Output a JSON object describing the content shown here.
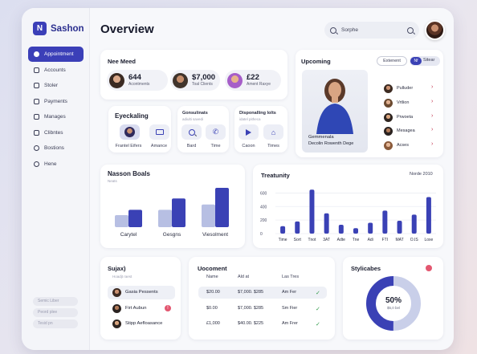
{
  "app": {
    "name": "Sashon"
  },
  "page": {
    "title": "Overview"
  },
  "search": {
    "placeholder": "Sorphe"
  },
  "sidebar": {
    "items": [
      {
        "label": "Appointment",
        "active": true
      },
      {
        "label": "Accounts"
      },
      {
        "label": "Stoler"
      },
      {
        "label": "Payments"
      },
      {
        "label": "Manages"
      },
      {
        "label": "Clibntes"
      },
      {
        "label": "Bostions"
      },
      {
        "label": "Hene"
      }
    ],
    "footer": [
      "Semic Liber",
      "Peord plee",
      "Tesid pn"
    ]
  },
  "need": {
    "title": "Nee Meed",
    "metrics": [
      {
        "value": "644",
        "label": "Acontments"
      },
      {
        "value": "$7,000",
        "label": "Toal Clients"
      },
      {
        "value": "£22",
        "label": "Ament Raxye"
      }
    ]
  },
  "eyeck": {
    "title": "Eyeckaling",
    "tiles": [
      {
        "label": "Frantel Eifers",
        "icon": "person-photo-icon"
      },
      {
        "label": "Amance",
        "icon": "monitor-icon"
      }
    ]
  },
  "gonsul": {
    "title": "Gonsulinats",
    "subtitle": "adiulti savedi",
    "tiles": [
      {
        "label": "Bard",
        "icon": "search-icon"
      },
      {
        "label": "Time",
        "icon": "phone-icon"
      }
    ]
  },
  "disponal": {
    "title": "Disponalling lolts",
    "subtitle": "idatel pitheca",
    "tiles": [
      {
        "label": "Caoon",
        "icon": "play-icon"
      },
      {
        "label": "Times",
        "icon": "home-icon"
      }
    ]
  },
  "upcoming": {
    "title": "Upcoming",
    "buttons": {
      "a": "Extenent",
      "b": "Sitear",
      "toggle": "Nf"
    },
    "person": {
      "name": "Gemmenala",
      "caption": "Decolin Rowenth Dege"
    },
    "items": [
      {
        "label": "Pulluder"
      },
      {
        "label": "Vrtlion"
      },
      {
        "label": "Prwoeta"
      },
      {
        "label": "Mesagea"
      },
      {
        "label": "Acses"
      }
    ]
  },
  "nasson": {
    "title": "Nasson Boals",
    "subtitle": "Neats",
    "labels": [
      "Carytel",
      "Gesgns",
      "Viesolment"
    ]
  },
  "treat": {
    "title": "Treatunity",
    "legend": "Norde 2010"
  },
  "chart_data": [
    {
      "type": "bar",
      "title": "Nasson Boals",
      "categories": [
        "Carytel",
        "Gesgns",
        "Viesolment"
      ],
      "series": [
        {
          "values": [
            18,
            26,
            34
          ]
        },
        {
          "values": [
            26,
            43,
            59
          ]
        }
      ],
      "ylim": [
        0,
        65
      ],
      "grid": false,
      "colors": [
        "#b7bfe3",
        "#3a41b5"
      ]
    },
    {
      "type": "bar",
      "title": "Treatunity",
      "legend": "Norde 2010",
      "categories": [
        "Time",
        "Sort",
        "Tnot",
        "3AT",
        "Adte",
        "Tne",
        "Adi",
        "FTI",
        "MAT",
        "O.IS",
        "Loxe"
      ],
      "values": [
        110,
        180,
        650,
        300,
        130,
        80,
        160,
        340,
        190,
        280,
        540
      ],
      "yticks": [
        0,
        200,
        400,
        600
      ],
      "ylim": [
        0,
        700
      ],
      "grid": true,
      "colors": [
        "#3a41b5"
      ]
    },
    {
      "type": "pie",
      "title": "Stylicabes",
      "values": [
        50,
        50
      ],
      "center_value": "50%",
      "center_label": "$5,0 bel",
      "colors": [
        "#3a41b5",
        "#c9cfe9"
      ]
    }
  ],
  "sujax": {
    "title": "Sujax)",
    "subtitle": "Hoadjt raest",
    "items": [
      {
        "label": "Gasia Pessents"
      },
      {
        "label": "Firt Aubun"
      },
      {
        "label": "Stipp Aefloasance"
      }
    ]
  },
  "uocoment": {
    "title": "Uocoment",
    "columns": [
      "Name",
      "Ald at",
      "Las Tres"
    ],
    "rows": [
      {
        "name": "$20.00",
        "amount": "$7,000. $285",
        "who": "Am Fer"
      },
      {
        "name": "$0.00",
        "amount": "$7,000. $285",
        "who": "Sm Fier"
      },
      {
        "name": "£1,000",
        "amount": "$40.00. $225",
        "who": "Am Frer"
      }
    ]
  },
  "stylic": {
    "title": "Stylicabes",
    "center_value": "50%",
    "center_label": "$5,0 bel"
  },
  "colors": {
    "accent": "#3a41b5",
    "accent_light": "#b7bfe3",
    "danger": "#e35770",
    "success": "#2f9a48"
  }
}
